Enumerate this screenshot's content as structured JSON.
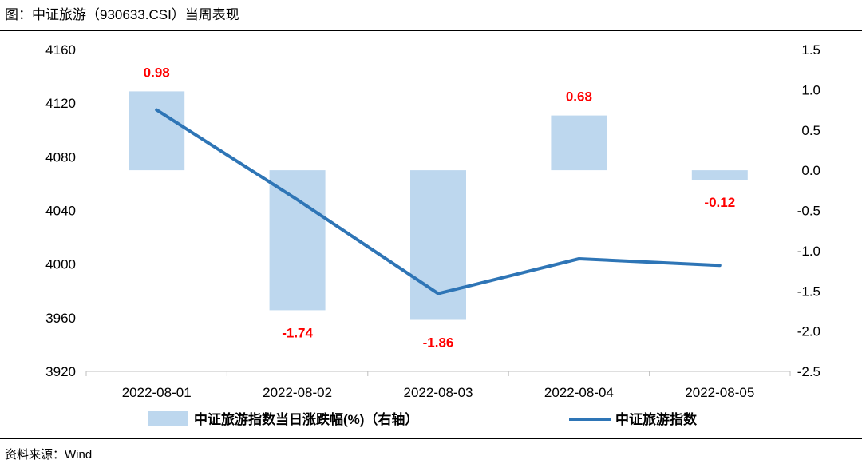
{
  "title": "图：中证旅游（930633.CSI）当周表现",
  "source": "资料来源：Wind",
  "colors": {
    "bar": "#bdd7ee",
    "line": "#2e75b6",
    "label": "#ff0000",
    "axis": "#bfbfbf"
  },
  "chart_data": {
    "type": "bar+line",
    "categories": [
      "2022-08-01",
      "2022-08-02",
      "2022-08-03",
      "2022-08-04",
      "2022-08-05"
    ],
    "left_axis": {
      "ticks": [
        4160,
        4120,
        4080,
        4040,
        4000,
        3960,
        3920
      ],
      "ylim": [
        3920,
        4160
      ]
    },
    "right_axis": {
      "ticks": [
        "1.5",
        "1.0",
        "0.5",
        "0.0",
        "-0.5",
        "-1.0",
        "-1.5",
        "-2.0",
        "-2.5"
      ],
      "ylim": [
        -2.5,
        1.5
      ]
    },
    "series": [
      {
        "name": "中证旅游指数当日涨跌幅(%)（右轴）",
        "type": "bar",
        "axis": "right",
        "values": [
          0.98,
          -1.74,
          -1.86,
          0.68,
          -0.12
        ],
        "labels": [
          "0.98",
          "-1.74",
          "-1.86",
          "0.68",
          "-0.12"
        ]
      },
      {
        "name": "中证旅游指数",
        "type": "line",
        "axis": "left",
        "values": [
          4115,
          4048,
          3978,
          4004,
          3999
        ]
      }
    ],
    "grid": false,
    "legend": "bottom"
  }
}
